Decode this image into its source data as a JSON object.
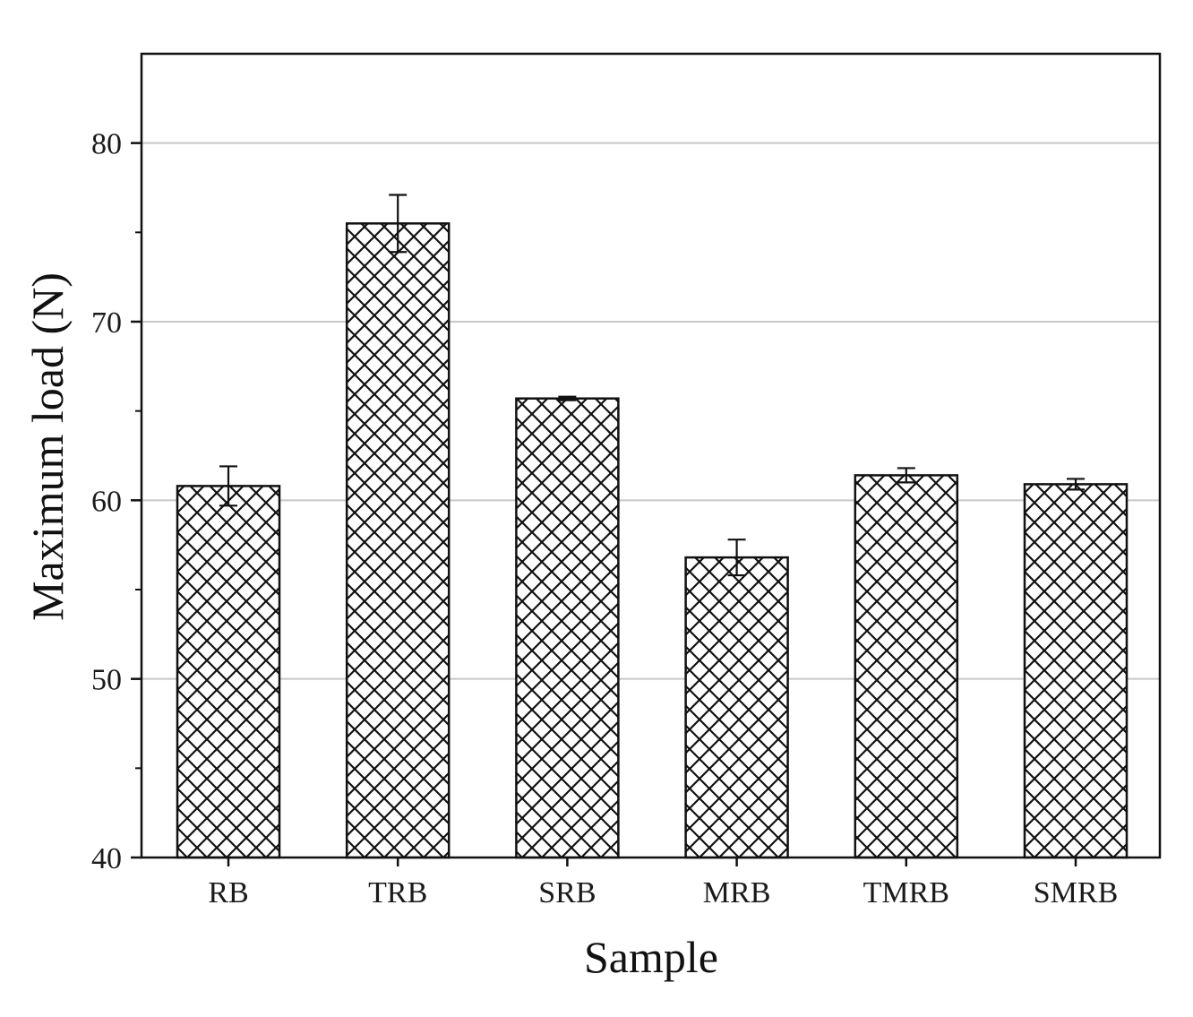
{
  "chart_data": {
    "type": "bar",
    "title": "",
    "xlabel": "Sample",
    "ylabel": "Maximum load (N)",
    "categories": [
      "RB",
      "TRB",
      "SRB",
      "MRB",
      "TMRB",
      "SMRB"
    ],
    "values": [
      60.8,
      75.5,
      65.7,
      56.8,
      61.4,
      60.9
    ],
    "errors": [
      1.1,
      1.6,
      0.1,
      1.0,
      0.4,
      0.3
    ],
    "ylim": [
      40,
      85
    ],
    "yticks": [
      40,
      50,
      60,
      70,
      80
    ],
    "grid": true,
    "legend": "none",
    "bar_pattern": "crosshatch"
  },
  "colors": {
    "bar_fill": "#ffffff",
    "bar_hatch": "#111111",
    "grid": "#c8c8c8",
    "axis": "#111111"
  }
}
